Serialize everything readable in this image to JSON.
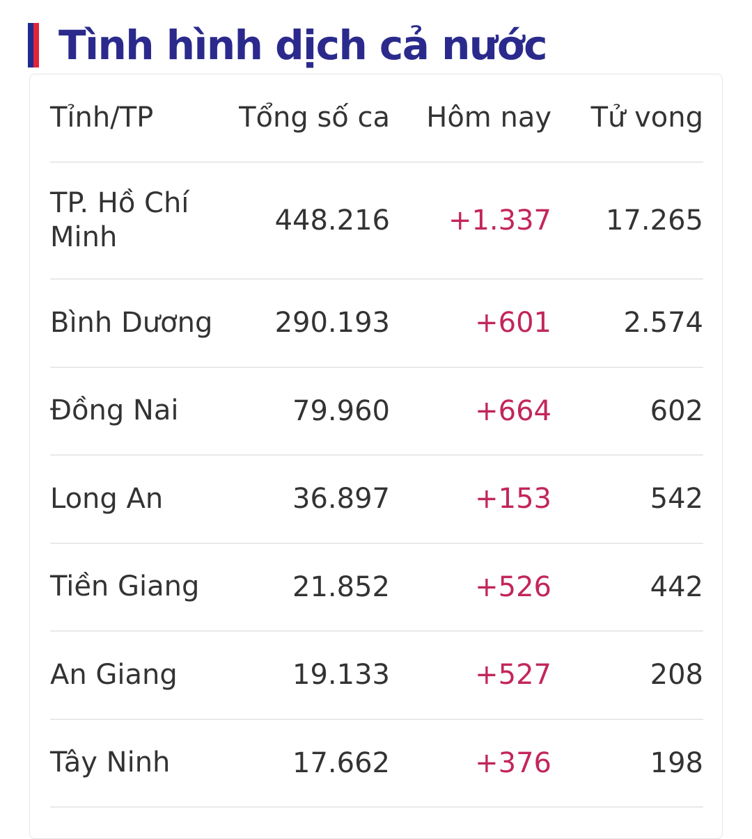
{
  "title": "Tình hình dịch cả nước",
  "colors": {
    "title": "#2b2a8c",
    "accent_primary": "#1e2b8f",
    "accent_secondary": "#e0243a",
    "today_increase": "#c2265a",
    "divider": "#e9e9e9"
  },
  "columns": {
    "province": "Tỉnh/TP",
    "total": "Tổng số ca",
    "today": "Hôm nay",
    "deaths": "Tử vong"
  },
  "rows": [
    {
      "province": "TP. Hồ Chí Minh",
      "total": "448.216",
      "today": "+1.337",
      "deaths": "17.265"
    },
    {
      "province": "Bình Dương",
      "total": "290.193",
      "today": "+601",
      "deaths": "2.574"
    },
    {
      "province": "Đồng Nai",
      "total": "79.960",
      "today": "+664",
      "deaths": "602"
    },
    {
      "province": "Long An",
      "total": "36.897",
      "today": "+153",
      "deaths": "542"
    },
    {
      "province": "Tiền Giang",
      "total": "21.852",
      "today": "+526",
      "deaths": "442"
    },
    {
      "province": "An Giang",
      "total": "19.133",
      "today": "+527",
      "deaths": "208"
    },
    {
      "province": "Tây Ninh",
      "total": "17.662",
      "today": "+376",
      "deaths": "198"
    }
  ]
}
